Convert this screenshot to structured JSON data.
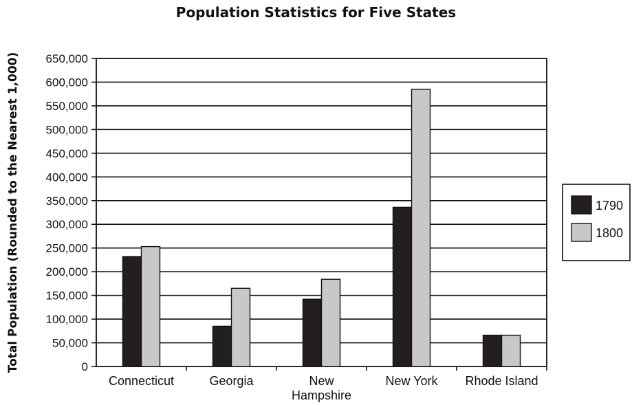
{
  "chart_data": {
    "type": "bar",
    "title": "Population Statistics for Five States",
    "xlabel": "",
    "ylabel": "Total Population (Rounded to the Nearest 1,000)",
    "ylim": [
      0,
      650000
    ],
    "y_ticks": [
      "0",
      "50,000",
      "100,000",
      "150,000",
      "200,000",
      "250,000",
      "300,000",
      "350,000",
      "400,000",
      "450,000",
      "500,000",
      "550,000",
      "600,000",
      "650,000"
    ],
    "categories": [
      [
        "Connecticut"
      ],
      [
        "Georgia"
      ],
      [
        "New",
        "Hampshire"
      ],
      [
        "New York"
      ],
      [
        "Rhode Island"
      ]
    ],
    "series": [
      {
        "name": "1790",
        "color": "#231f20",
        "values": [
          232000,
          85000,
          142000,
          336000,
          66000
        ]
      },
      {
        "name": "1800",
        "color": "#c8c8c8",
        "values": [
          253000,
          165000,
          184000,
          585000,
          66000
        ]
      }
    ],
    "grid": true,
    "legend": "right"
  }
}
